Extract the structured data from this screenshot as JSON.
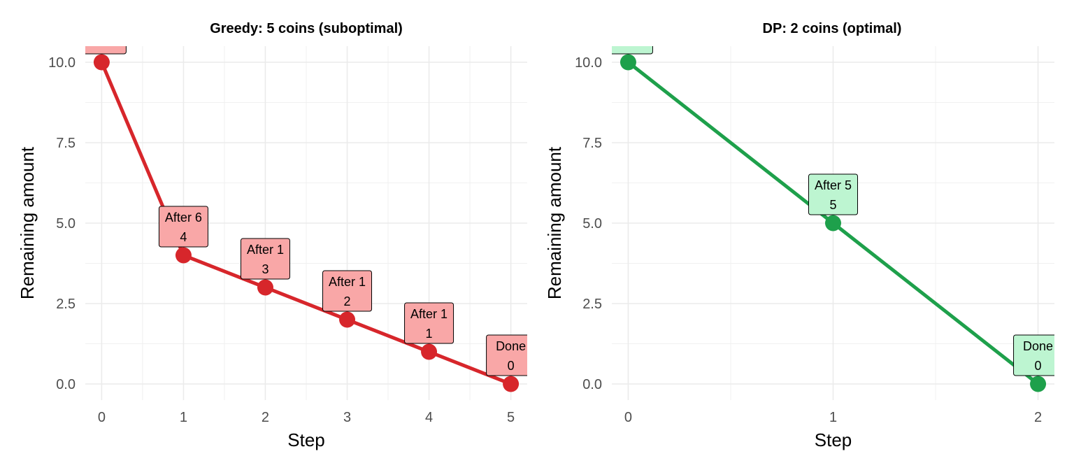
{
  "chart_data": [
    {
      "type": "line",
      "title": "Greedy: 5 coins (suboptimal)",
      "xlabel": "Step",
      "ylabel": "Remaining amount",
      "xlim": [
        -0.2,
        5.2
      ],
      "ylim": [
        -0.5,
        10.5
      ],
      "x_ticks": [
        0,
        1,
        2,
        3,
        4,
        5
      ],
      "y_ticks": [
        0,
        2.5,
        5,
        7.5,
        10
      ],
      "y_tick_labels": [
        "0.0",
        "2.5",
        "5.0",
        "7.5",
        "10.0"
      ],
      "grid": true,
      "legend": "none",
      "color": "#d7262b",
      "label_fill": "#f9a7a7",
      "series": [
        {
          "x": [
            0,
            1,
            2,
            3,
            4,
            5
          ],
          "y": [
            10,
            4,
            3,
            2,
            1,
            0
          ],
          "labels": [
            [
              "",
              ""
            ],
            [
              "After 6",
              "4"
            ],
            [
              "After 1",
              "3"
            ],
            [
              "After 1",
              "2"
            ],
            [
              "After 1",
              "1"
            ],
            [
              "Done",
              "0"
            ]
          ]
        }
      ]
    },
    {
      "type": "line",
      "title": "DP: 2 coins (optimal)",
      "xlabel": "Step",
      "ylabel": "Remaining amount",
      "xlim": [
        -0.08,
        2.08
      ],
      "ylim": [
        -0.5,
        10.5
      ],
      "x_ticks": [
        0,
        1,
        2
      ],
      "y_ticks": [
        0,
        2.5,
        5,
        7.5,
        10
      ],
      "y_tick_labels": [
        "0.0",
        "2.5",
        "5.0",
        "7.5",
        "10.0"
      ],
      "grid": true,
      "legend": "none",
      "color": "#1ea04b",
      "label_fill": "#bdf5d1",
      "series": [
        {
          "x": [
            0,
            1,
            2
          ],
          "y": [
            10,
            5,
            0
          ],
          "labels": [
            [
              "",
              ""
            ],
            [
              "After 5",
              "5"
            ],
            [
              "Done",
              "0"
            ]
          ]
        }
      ]
    }
  ]
}
